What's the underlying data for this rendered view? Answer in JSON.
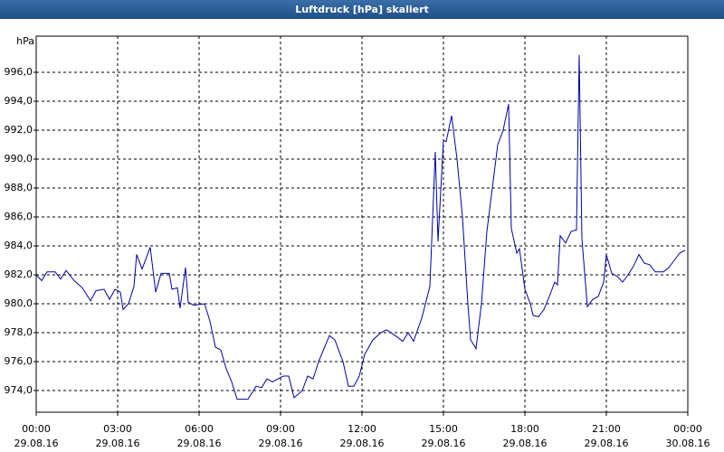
{
  "chart_data": {
    "type": "line",
    "title": "Luftdruck [hPa] skaliert",
    "y_label": "hPa",
    "xlim": [
      0,
      24
    ],
    "xticks": [
      {
        "value": 0,
        "label": "00:00",
        "date": "29.08.16"
      },
      {
        "value": 3,
        "label": "03:00",
        "date": "29.08.16"
      },
      {
        "value": 6,
        "label": "06:00",
        "date": "29.08.16"
      },
      {
        "value": 9,
        "label": "09:00",
        "date": "29.08.16"
      },
      {
        "value": 12,
        "label": "12:00",
        "date": "29.08.16"
      },
      {
        "value": 15,
        "label": "15:00",
        "date": "29.08.16"
      },
      {
        "value": 18,
        "label": "18:00",
        "date": "29.08.16"
      },
      {
        "value": 21,
        "label": "21:00",
        "date": "29.08.16"
      },
      {
        "value": 24,
        "label": "00:00",
        "date": "30.08.16"
      }
    ],
    "ylim": [
      972.5,
      998.5
    ],
    "yticks": [
      {
        "value": 974,
        "label": "974,0"
      },
      {
        "value": 976,
        "label": "976,0"
      },
      {
        "value": 978,
        "label": "978,0"
      },
      {
        "value": 980,
        "label": "980,0"
      },
      {
        "value": 982,
        "label": "982,0"
      },
      {
        "value": 984,
        "label": "984,0"
      },
      {
        "value": 986,
        "label": "986,0"
      },
      {
        "value": 988,
        "label": "988,0"
      },
      {
        "value": 990,
        "label": "990,0"
      },
      {
        "value": 992,
        "label": "992,0"
      },
      {
        "value": 994,
        "label": "994,0"
      },
      {
        "value": 996,
        "label": "996,0"
      }
    ],
    "grid": true,
    "x": [
      0,
      0.2,
      0.4,
      0.7,
      0.9,
      1.1,
      1.4,
      1.7,
      2.0,
      2.2,
      2.5,
      2.7,
      2.9,
      3.1,
      3.2,
      3.4,
      3.6,
      3.7,
      3.9,
      4.2,
      4.4,
      4.6,
      4.9,
      5.0,
      5.2,
      5.3,
      5.5,
      5.6,
      5.8,
      6.2,
      6.4,
      6.6,
      6.8,
      7.0,
      7.2,
      7.4,
      7.8,
      8.1,
      8.3,
      8.5,
      8.7,
      8.9,
      9.1,
      9.3,
      9.5,
      9.8,
      10.0,
      10.2,
      10.4,
      10.8,
      11.0,
      11.3,
      11.5,
      11.7,
      11.9,
      12.1,
      12.4,
      12.7,
      12.9,
      13.3,
      13.5,
      13.7,
      13.9,
      14.2,
      14.5,
      14.7,
      14.8,
      15.0,
      15.1,
      15.3,
      15.5,
      15.7,
      15.9,
      16.0,
      16.2,
      16.4,
      16.6,
      16.8,
      17.0,
      17.2,
      17.4,
      17.5,
      17.7,
      17.8,
      18.0,
      18.2,
      18.3,
      18.5,
      18.7,
      18.9,
      19.1,
      19.2,
      19.3,
      19.5,
      19.7,
      19.9,
      20.0,
      20.1,
      20.3,
      20.5,
      20.7,
      20.9,
      21.0,
      21.2,
      21.4,
      21.6,
      21.8,
      22.0,
      22.2,
      22.4,
      22.6,
      22.8,
      23.1,
      23.3,
      23.5,
      23.7,
      23.9
    ],
    "series": [
      {
        "color": "#0000a8",
        "values": [
          982.0,
          981.6,
          982.2,
          982.2,
          981.7,
          982.3,
          981.6,
          981.1,
          980.2,
          980.9,
          981.0,
          980.3,
          981.0,
          980.8,
          979.6,
          980.0,
          981.2,
          983.4,
          982.4,
          983.9,
          980.8,
          982.1,
          982.1,
          981.0,
          981.1,
          979.7,
          982.5,
          980.1,
          979.9,
          980.0,
          978.8,
          977.0,
          976.8,
          975.5,
          974.6,
          973.4,
          973.4,
          974.3,
          974.2,
          974.8,
          974.6,
          974.8,
          975.0,
          975.0,
          973.5,
          974.0,
          975.0,
          974.8,
          976.0,
          977.8,
          977.5,
          976.0,
          974.3,
          974.3,
          975.0,
          976.5,
          977.5,
          978.0,
          978.2,
          977.7,
          977.4,
          978.0,
          977.4,
          979.0,
          981.2,
          990.5,
          984.3,
          991.3,
          991.2,
          993.0,
          990.0,
          986.0,
          980.0,
          977.5,
          976.9,
          980.0,
          985.0,
          988.0,
          991.0,
          992.0,
          993.8,
          985.2,
          983.5,
          983.8,
          981.0,
          980.0,
          979.2,
          979.1,
          979.6,
          980.5,
          981.5,
          981.3,
          984.7,
          984.2,
          985.0,
          985.1,
          997.2,
          984.5,
          979.8,
          980.3,
          980.5,
          981.5,
          983.4,
          982.1,
          981.9,
          981.5,
          982.0,
          982.6,
          983.4,
          982.8,
          982.7,
          982.2,
          982.2,
          982.5,
          983.0,
          983.5,
          983.7
        ]
      }
    ]
  }
}
